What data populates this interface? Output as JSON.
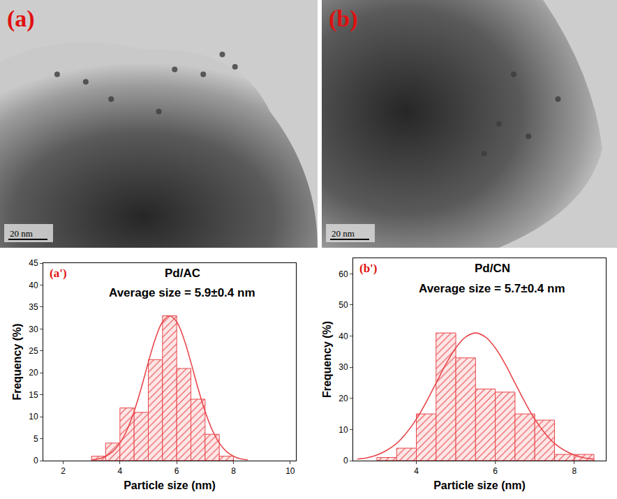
{
  "images": [
    {
      "label": "(a)",
      "scale_bar": "20 nm"
    },
    {
      "label": "(b)",
      "scale_bar": "20 nm"
    }
  ],
  "chart_data": [
    {
      "type": "histogram",
      "panel": "(a')",
      "title": "Pd/AC",
      "annotations": [
        "Average size = 5.9±0.4 nm"
      ],
      "x_label": "Particle size (nm)",
      "y_label": "Frequency (%)",
      "bins": [
        3.0,
        3.5,
        4.0,
        4.5,
        5.0,
        5.5,
        6.0,
        6.5,
        7.0,
        7.5,
        8.0
      ],
      "values": [
        1,
        4,
        12,
        11,
        23,
        33,
        21,
        14,
        6,
        1
      ],
      "color": "#e8474c",
      "fit": {
        "type": "line",
        "color": "#e8474c",
        "x": [
          3.0,
          3.25,
          3.5,
          3.75,
          4.0,
          4.25,
          4.5,
          4.75,
          5.0,
          5.25,
          5.5,
          5.75,
          6.0,
          6.25,
          6.5,
          6.75,
          7.0,
          7.25,
          7.5,
          7.75,
          8.0,
          8.25,
          8.5
        ],
        "values": [
          0.2,
          0.4,
          1.0,
          2.1,
          4.0,
          7.0,
          11.2,
          16.5,
          22.4,
          27.8,
          31.6,
          33.0,
          31.6,
          27.8,
          22.4,
          16.5,
          11.2,
          7.0,
          4.0,
          2.1,
          1.0,
          0.4,
          0.2
        ]
      },
      "xlim": [
        1.3,
        10.2
      ],
      "xticks": [
        2,
        4,
        6,
        8,
        10
      ],
      "ylim": [
        0,
        45
      ],
      "yticks": [
        0,
        5,
        10,
        15,
        20,
        25,
        30,
        35,
        40,
        45
      ],
      "grid": false
    },
    {
      "type": "histogram",
      "panel": "(b')",
      "title": "Pd/CN",
      "annotations": [
        "Average size = 5.7±0.4 nm"
      ],
      "x_label": "Particle size (nm)",
      "y_label": "Frequency (%)",
      "bins": [
        3.0,
        3.5,
        4.0,
        4.5,
        5.0,
        5.5,
        6.0,
        6.5,
        7.0,
        7.5,
        8.0,
        8.5
      ],
      "values": [
        1,
        4,
        15,
        41,
        33,
        23,
        22,
        15,
        13,
        2,
        2
      ],
      "color": "#e8474c",
      "fit": {
        "type": "line",
        "color": "#e8474c",
        "x": [
          2.5,
          2.75,
          3.0,
          3.25,
          3.5,
          3.75,
          4.0,
          4.25,
          4.5,
          4.75,
          5.0,
          5.25,
          5.5,
          5.75,
          6.0,
          6.25,
          6.5,
          6.75,
          7.0,
          7.25,
          7.5,
          7.75,
          8.0,
          8.25,
          8.5
        ],
        "values": [
          0.5,
          0.9,
          1.8,
          3.3,
          5.5,
          8.9,
          13.3,
          18.8,
          24.9,
          31.0,
          36.2,
          39.7,
          41.0,
          39.7,
          36.2,
          31.0,
          24.9,
          18.8,
          13.3,
          8.9,
          5.5,
          3.3,
          1.8,
          0.9,
          0.5
        ]
      },
      "xlim": [
        2.4,
        8.8
      ],
      "xticks": [
        4,
        6,
        8
      ],
      "ylim": [
        0,
        65
      ],
      "yticks": [
        0,
        10,
        20,
        30,
        40,
        50,
        60
      ],
      "grid": false
    }
  ]
}
